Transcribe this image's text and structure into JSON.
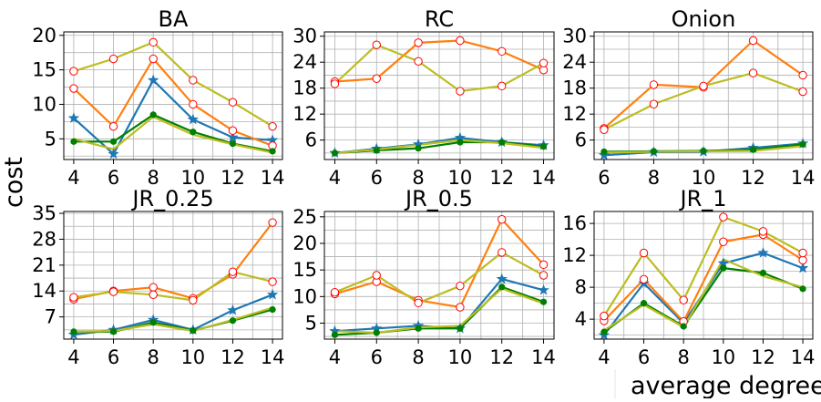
{
  "ylabel": "cost",
  "xlabel": "average degree",
  "colors": {
    "blue": "#1f77b4",
    "orange": "#ff7f0e",
    "olive": "#bcbd22",
    "green": "#008000",
    "marker_edge": "#ff0000"
  },
  "chart_data": [
    {
      "type": "line",
      "title": "BA",
      "x": [
        4,
        6,
        8,
        10,
        12,
        14
      ],
      "xticks": [
        4,
        6,
        8,
        10,
        12,
        14
      ],
      "yticks": [
        5,
        10,
        15,
        20
      ],
      "ylim": [
        2.0,
        20.5
      ],
      "series": [
        {
          "color": "#1f77b4",
          "marker": "star",
          "values": [
            8.0,
            2.8,
            13.5,
            7.8,
            5.2,
            4.8
          ]
        },
        {
          "color": "#ff7f0e",
          "marker": "circle",
          "values": [
            12.3,
            6.8,
            16.6,
            10.0,
            6.2,
            4.0
          ]
        },
        {
          "color": "#bcbd22",
          "marker": "circle",
          "values": [
            14.8,
            16.6,
            19.0,
            13.5,
            10.3,
            6.8
          ]
        },
        {
          "color": "#008000",
          "marker": "dot",
          "values": [
            4.6,
            4.6,
            8.5,
            6.0,
            4.3,
            3.2
          ]
        },
        {
          "color": "#bcbd22",
          "marker": "none",
          "values": [
            5.0,
            3.5,
            8.2,
            5.6,
            4.2,
            3.0
          ]
        }
      ]
    },
    {
      "type": "line",
      "title": "RC",
      "x": [
        4,
        6,
        8,
        10,
        12,
        14
      ],
      "xticks": [
        4,
        6,
        8,
        10,
        12,
        14
      ],
      "yticks": [
        6,
        12,
        18,
        24,
        30
      ],
      "ylim": [
        1.5,
        31
      ],
      "series": [
        {
          "color": "#1f77b4",
          "marker": "star",
          "values": [
            3.0,
            4.0,
            5.0,
            6.5,
            5.5,
            4.8
          ]
        },
        {
          "color": "#ff7f0e",
          "marker": "circle",
          "values": [
            19.5,
            20.2,
            28.5,
            29.0,
            26.5,
            22.2
          ]
        },
        {
          "color": "#bcbd22",
          "marker": "circle",
          "values": [
            19.0,
            28.0,
            24.2,
            17.3,
            18.5,
            23.8
          ]
        },
        {
          "color": "#008000",
          "marker": "dot",
          "values": [
            3.0,
            3.6,
            4.1,
            5.5,
            5.5,
            4.5
          ]
        },
        {
          "color": "#bcbd22",
          "marker": "none",
          "values": [
            3.0,
            3.8,
            4.9,
            6.0,
            5.3,
            4.2
          ]
        }
      ]
    },
    {
      "type": "line",
      "title": "Onion",
      "x": [
        6,
        8,
        10,
        12,
        14
      ],
      "xticks": [
        6,
        8,
        10,
        12,
        14
      ],
      "yticks": [
        6,
        12,
        18,
        24,
        30
      ],
      "ylim": [
        1.5,
        31
      ],
      "series": [
        {
          "color": "#1f77b4",
          "marker": "star",
          "values": [
            2.5,
            3.2,
            3.3,
            4.2,
            5.2
          ]
        },
        {
          "color": "#ff7f0e",
          "marker": "circle",
          "values": [
            8.7,
            18.8,
            18.2,
            29.0,
            21.0
          ]
        },
        {
          "color": "#bcbd22",
          "marker": "circle",
          "values": [
            8.4,
            14.3,
            18.5,
            21.5,
            17.2
          ]
        },
        {
          "color": "#008000",
          "marker": "dot",
          "values": [
            3.3,
            3.4,
            3.5,
            3.8,
            5.0
          ]
        },
        {
          "color": "#bcbd22",
          "marker": "none",
          "values": [
            3.1,
            3.3,
            3.4,
            3.5,
            4.6
          ]
        }
      ]
    },
    {
      "type": "line",
      "title": "JR_0.25",
      "x": [
        4,
        6,
        8,
        10,
        12,
        14
      ],
      "xticks": [
        4,
        6,
        8,
        10,
        12,
        14
      ],
      "yticks": [
        7,
        14,
        21,
        28,
        35
      ],
      "ylim": [
        1,
        35.5
      ],
      "series": [
        {
          "color": "#1f77b4",
          "marker": "star",
          "values": [
            2.2,
            3.5,
            6.2,
            3.5,
            8.8,
            13.0
          ]
        },
        {
          "color": "#ff7f0e",
          "marker": "circle",
          "values": [
            11.8,
            14.0,
            15.0,
            12.0,
            18.5,
            32.5
          ]
        },
        {
          "color": "#bcbd22",
          "marker": "circle",
          "values": [
            12.3,
            13.8,
            13.0,
            11.5,
            19.2,
            16.5
          ]
        },
        {
          "color": "#008000",
          "marker": "dot",
          "values": [
            3.0,
            3.0,
            5.5,
            3.3,
            6.0,
            9.0
          ]
        },
        {
          "color": "#bcbd22",
          "marker": "none",
          "values": [
            3.0,
            3.2,
            5.0,
            3.2,
            6.2,
            9.5
          ]
        }
      ]
    },
    {
      "type": "line",
      "title": "JR_0.5",
      "x": [
        4,
        6,
        8,
        10,
        12,
        14
      ],
      "xticks": [
        4,
        6,
        8,
        10,
        12,
        14
      ],
      "yticks": [
        5,
        10,
        15,
        20,
        25
      ],
      "ylim": [
        2,
        26
      ],
      "series": [
        {
          "color": "#1f77b4",
          "marker": "star",
          "values": [
            3.5,
            4.0,
            4.5,
            4.0,
            13.3,
            11.2
          ]
        },
        {
          "color": "#ff7f0e",
          "marker": "circle",
          "values": [
            10.5,
            12.8,
            9.3,
            8.0,
            24.5,
            16.0
          ]
        },
        {
          "color": "#bcbd22",
          "marker": "circle",
          "values": [
            10.8,
            14.0,
            8.8,
            12.0,
            18.3,
            14.0
          ]
        },
        {
          "color": "#008000",
          "marker": "dot",
          "values": [
            2.8,
            3.2,
            4.0,
            4.0,
            11.8,
            9.0
          ]
        },
        {
          "color": "#bcbd22",
          "marker": "none",
          "values": [
            3.5,
            3.2,
            4.2,
            4.5,
            11.5,
            8.7
          ]
        }
      ]
    },
    {
      "type": "line",
      "title": "JR_1",
      "x": [
        4,
        6,
        8,
        10,
        12,
        14
      ],
      "xticks": [
        4,
        6,
        8,
        10,
        12,
        14
      ],
      "yticks": [
        4,
        8,
        12,
        16
      ],
      "ylim": [
        1.5,
        17.5
      ],
      "series": [
        {
          "color": "#1f77b4",
          "marker": "star",
          "values": [
            2.0,
            8.5,
            3.5,
            11.0,
            12.3,
            10.4
          ]
        },
        {
          "color": "#ff7f0e",
          "marker": "circle",
          "values": [
            3.8,
            9.0,
            3.7,
            13.7,
            14.6,
            11.4
          ]
        },
        {
          "color": "#bcbd22",
          "marker": "circle",
          "values": [
            4.4,
            12.3,
            6.4,
            16.8,
            15.0,
            12.3
          ]
        },
        {
          "color": "#008000",
          "marker": "dot",
          "values": [
            2.4,
            6.0,
            3.1,
            10.4,
            9.8,
            7.8
          ]
        },
        {
          "color": "#bcbd22",
          "marker": "none",
          "values": [
            2.6,
            5.8,
            3.0,
            11.5,
            9.4,
            8.0
          ]
        }
      ]
    }
  ]
}
